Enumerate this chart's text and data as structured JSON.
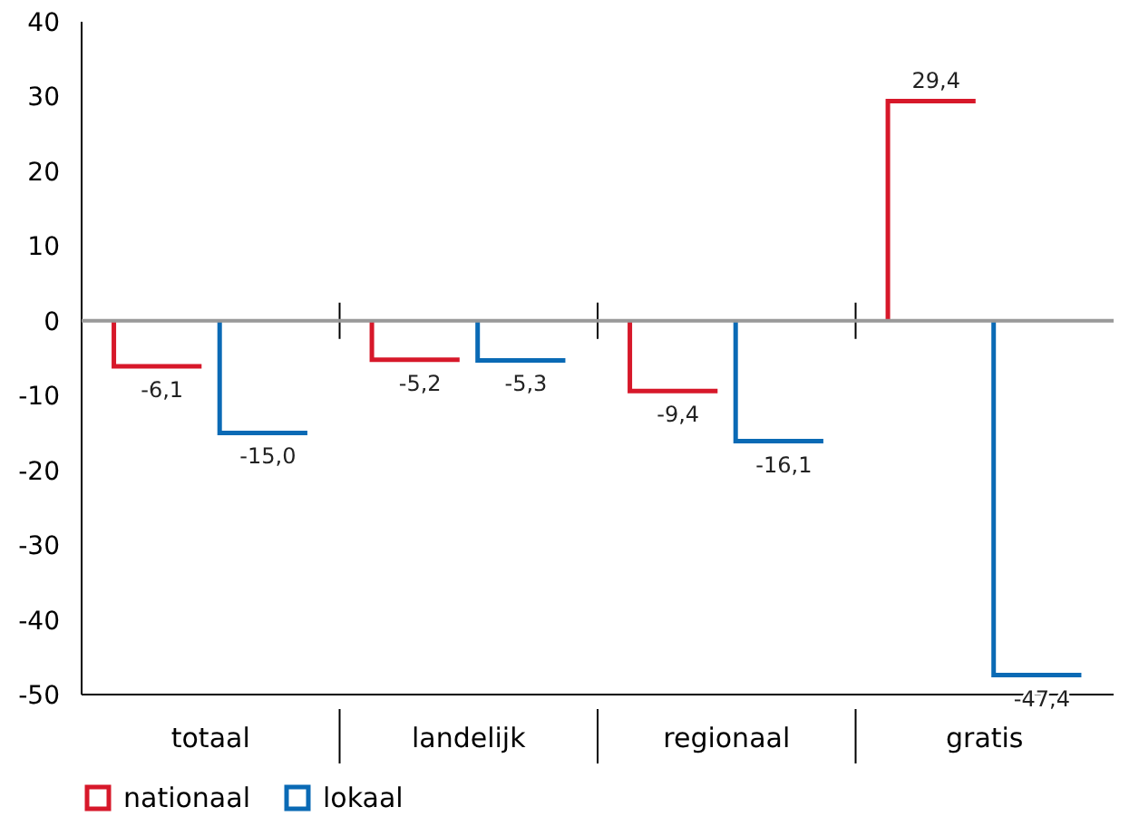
{
  "chart_data": {
    "type": "bar",
    "categories": [
      "totaal",
      "landelijk",
      "regionaal",
      "gratis"
    ],
    "series": [
      {
        "name": "nationaal",
        "color": "#d7182a",
        "values": [
          -6.1,
          -5.2,
          -9.4,
          29.4
        ],
        "value_labels": [
          "-6,1",
          "-5,2",
          "-9,4",
          "29,4"
        ]
      },
      {
        "name": "lokaal",
        "color": "#0a6ab5",
        "values": [
          -15.0,
          -5.3,
          -16.1,
          -47.4
        ],
        "value_labels": [
          "-15,0",
          "-5,3",
          "-16,1",
          "-47,4"
        ]
      }
    ],
    "ylim": [
      -50,
      40
    ],
    "yticks": [
      -50,
      -40,
      -30,
      -20,
      -10,
      0,
      10,
      20,
      30,
      40
    ],
    "legend": "bottom left"
  }
}
